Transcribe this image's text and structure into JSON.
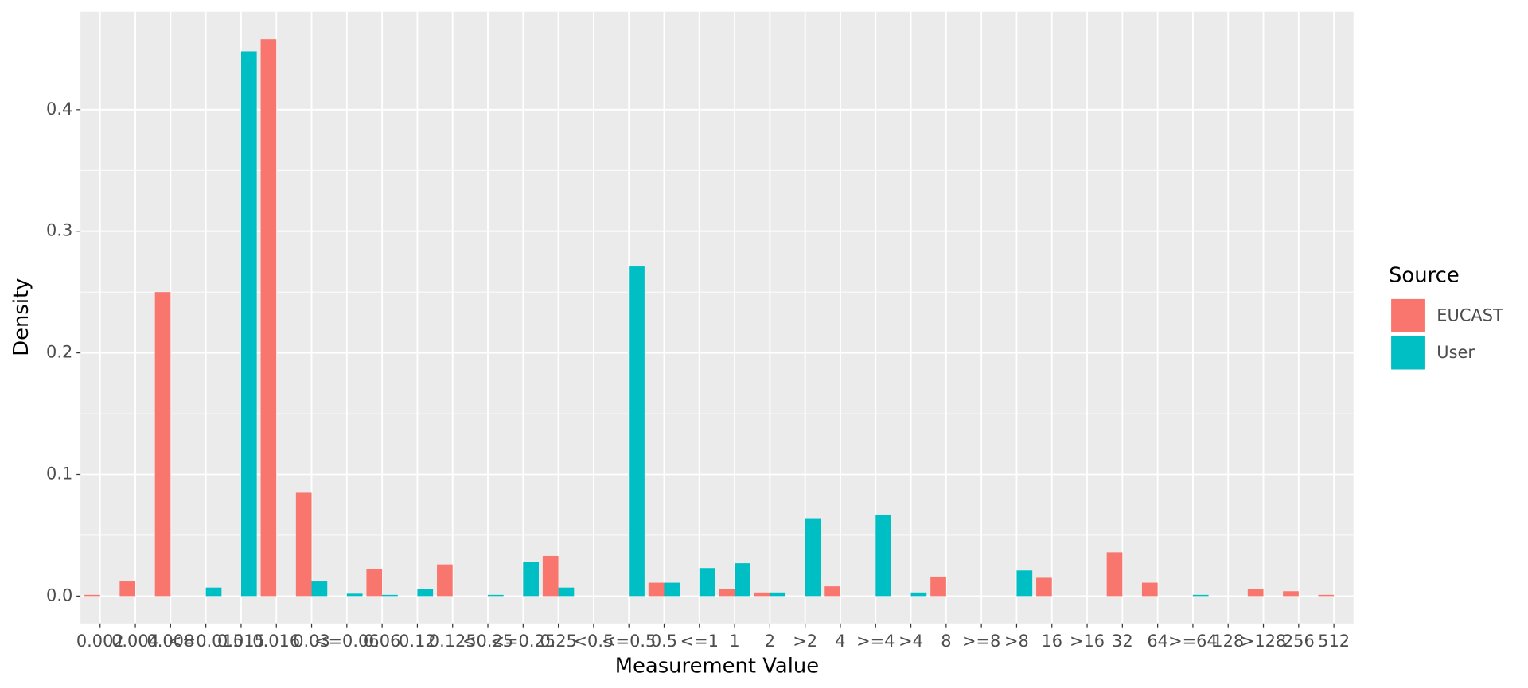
{
  "chart_data": {
    "type": "bar",
    "x_label": "Measurement Value",
    "y_label": "Density",
    "legend_title": "Source",
    "categories": [
      "0.002",
      "0.004",
      "0.008",
      "<=0.015",
      "0.015",
      "0.016",
      "0.03",
      "<=0.06",
      "0.06",
      "0.12",
      "0.125",
      "<0.25",
      "<=0.25",
      "0.25",
      "<0.5",
      "<=0.5",
      "0.5",
      "<=1",
      "1",
      "2",
      ">2",
      "4",
      ">=4",
      ">4",
      "8",
      ">=8",
      ">8",
      "16",
      ">16",
      "32",
      "64",
      ">=64",
      "128",
      ">128",
      "256",
      "512"
    ],
    "series": [
      {
        "name": "EUCAST",
        "color": "#f8766d",
        "values": [
          0.001,
          0.012,
          0.25,
          null,
          null,
          0.458,
          0.085,
          null,
          0.022,
          null,
          0.026,
          null,
          null,
          0.033,
          null,
          null,
          0.011,
          null,
          0.006,
          0.003,
          null,
          0.008,
          null,
          null,
          0.016,
          null,
          null,
          0.015,
          null,
          0.036,
          0.011,
          null,
          null,
          0.006,
          0.004,
          0.001
        ]
      },
      {
        "name": "User",
        "color": "#00bfc4",
        "values": [
          null,
          null,
          null,
          0.007,
          0.448,
          null,
          0.012,
          0.002,
          0.001,
          0.006,
          null,
          0.001,
          0.028,
          0.007,
          null,
          0.271,
          0.011,
          0.023,
          0.027,
          0.003,
          0.064,
          null,
          0.067,
          0.003,
          null,
          null,
          0.021,
          null,
          null,
          null,
          null,
          0.001,
          null,
          null,
          null,
          null
        ]
      }
    ],
    "ylim": [
      -0.0225,
      0.4805
    ],
    "yticks": [
      {
        "value": 0,
        "label": "0.0"
      },
      0.1,
      0.2,
      0.3,
      0.4
    ],
    "grid": true,
    "legend": "right"
  }
}
